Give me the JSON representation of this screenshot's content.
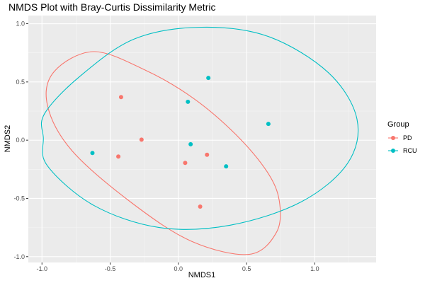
{
  "chart_data": {
    "type": "scatter",
    "title": "NMDS Plot with Bray-Curtis Dissimilarity Metric",
    "xlabel": "NMDS1",
    "ylabel": "NMDS2",
    "xlim": [
      -1.1,
      1.45
    ],
    "ylim": [
      -1.05,
      1.07
    ],
    "xticks": [
      -1.0,
      -0.5,
      0.0,
      0.5,
      1.0
    ],
    "xtick_labels": [
      "-1.0",
      "-0.5",
      "0.0",
      "0.5",
      "1.0"
    ],
    "yticks": [
      -1.0,
      -0.5,
      0.0,
      0.5,
      1.0
    ],
    "ytick_labels": [
      "-1.0",
      "-0.5",
      "0.0",
      "0.5",
      "1.0"
    ],
    "grid": true,
    "legend": {
      "title": "Group",
      "placement": "right"
    },
    "series": [
      {
        "name": "PD",
        "color": "#f8766d",
        "points": [
          {
            "x": -0.42,
            "y": 0.37
          },
          {
            "x": -0.27,
            "y": 0.005
          },
          {
            "x": -0.44,
            "y": -0.14
          },
          {
            "x": 0.05,
            "y": -0.195
          },
          {
            "x": 0.21,
            "y": -0.125
          },
          {
            "x": 0.16,
            "y": -0.57
          }
        ],
        "ellipse": [
          [
            -0.91,
            0.59
          ],
          [
            -0.62,
            0.76
          ],
          [
            -0.24,
            0.6
          ],
          [
            0.11,
            0.36
          ],
          [
            0.42,
            0.05
          ],
          [
            0.65,
            -0.27
          ],
          [
            0.74,
            -0.52
          ],
          [
            0.72,
            -0.79
          ],
          [
            0.52,
            -0.98
          ],
          [
            0.1,
            -0.87
          ],
          [
            -0.34,
            -0.54
          ],
          [
            -0.78,
            -0.09
          ],
          [
            -0.96,
            0.3
          ],
          [
            -0.91,
            0.59
          ]
        ]
      },
      {
        "name": "RCU",
        "color": "#00bfc4",
        "points": [
          {
            "x": 0.22,
            "y": 0.535
          },
          {
            "x": 0.07,
            "y": 0.33
          },
          {
            "x": 0.66,
            "y": 0.14
          },
          {
            "x": 0.09,
            "y": -0.035
          },
          {
            "x": -0.63,
            "y": -0.11
          },
          {
            "x": 0.35,
            "y": -0.225
          }
        ],
        "ellipse": [
          [
            -0.98,
            0.23
          ],
          [
            -0.72,
            0.55
          ],
          [
            -0.32,
            0.87
          ],
          [
            0.17,
            0.97
          ],
          [
            0.66,
            0.89
          ],
          [
            1.1,
            0.58
          ],
          [
            1.31,
            0.18
          ],
          [
            1.24,
            -0.2
          ],
          [
            0.9,
            -0.53
          ],
          [
            0.38,
            -0.73
          ],
          [
            -0.14,
            -0.75
          ],
          [
            -0.62,
            -0.56
          ],
          [
            -0.96,
            -0.22
          ],
          [
            -0.99,
            0.02
          ],
          [
            -0.98,
            0.23
          ]
        ]
      }
    ]
  }
}
